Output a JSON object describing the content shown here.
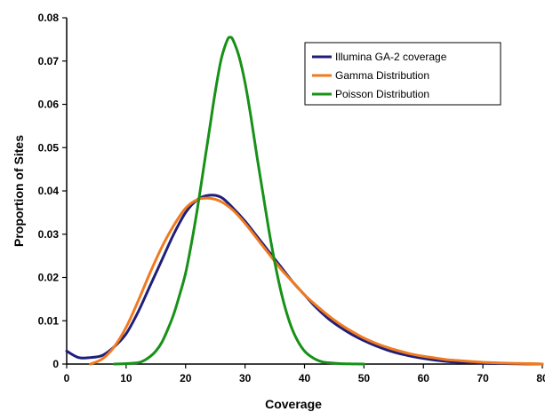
{
  "chart_data": {
    "type": "line",
    "title": "",
    "xlabel": "Coverage",
    "ylabel": "Proportion of Sites",
    "xlim": [
      0,
      80
    ],
    "ylim": [
      0,
      0.08
    ],
    "x_ticks": [
      0,
      10,
      20,
      30,
      40,
      50,
      60,
      70,
      80
    ],
    "x_tick_labels": [
      "0",
      "10",
      "20",
      "30",
      "40",
      "50",
      "60",
      "70",
      "80"
    ],
    "y_ticks": [
      0,
      0.01,
      0.02,
      0.03,
      0.04,
      0.05,
      0.06,
      0.07,
      0.08
    ],
    "y_tick_labels": [
      "0",
      "0.01",
      "0.02",
      "0.03",
      "0.04",
      "0.05",
      "0.06",
      "0.07",
      "0.08"
    ],
    "grid": false,
    "legend_position": "top-right",
    "series": [
      {
        "name": "Illumina GA-2 coverage",
        "color": "#1f1f7a",
        "x": [
          0,
          2,
          4,
          6,
          8,
          10,
          12,
          14,
          16,
          18,
          20,
          22,
          24,
          26,
          28,
          30,
          32,
          34,
          36,
          38,
          40,
          42,
          44,
          46,
          48,
          50,
          52,
          54,
          56,
          58,
          60,
          62,
          64,
          66,
          68,
          70,
          72,
          74,
          76,
          78,
          80
        ],
        "y": [
          0.003,
          0.0015,
          0.0015,
          0.002,
          0.004,
          0.007,
          0.012,
          0.018,
          0.024,
          0.03,
          0.035,
          0.038,
          0.039,
          0.0385,
          0.036,
          0.033,
          0.0295,
          0.026,
          0.0225,
          0.019,
          0.016,
          0.013,
          0.0105,
          0.0085,
          0.0068,
          0.0054,
          0.0042,
          0.0032,
          0.0024,
          0.0018,
          0.0013,
          0.0009,
          0.0006,
          0.0004,
          0.0003,
          0.0002,
          0.00015,
          0.0001,
          5e-05,
          3e-05,
          0.0
        ]
      },
      {
        "name": "Gamma Distribution",
        "color": "#f07a1f",
        "x": [
          4,
          6,
          8,
          10,
          12,
          14,
          16,
          18,
          20,
          22,
          24,
          26,
          28,
          30,
          32,
          34,
          36,
          38,
          40,
          42,
          44,
          46,
          48,
          50,
          52,
          54,
          56,
          58,
          60,
          62,
          64,
          66,
          68,
          70,
          72,
          74,
          76,
          78,
          80
        ],
        "y": [
          0.0,
          0.0012,
          0.004,
          0.0085,
          0.0145,
          0.021,
          0.027,
          0.032,
          0.036,
          0.038,
          0.0383,
          0.0375,
          0.0355,
          0.0325,
          0.029,
          0.0255,
          0.022,
          0.019,
          0.016,
          0.0135,
          0.0112,
          0.0092,
          0.0075,
          0.006,
          0.0048,
          0.0038,
          0.003,
          0.0023,
          0.0018,
          0.0014,
          0.001,
          0.0008,
          0.0006,
          0.0004,
          0.0003,
          0.0002,
          0.00015,
          0.0001,
          0.0
        ]
      },
      {
        "name": "Poisson Distribution",
        "color": "#179117",
        "x": [
          8,
          10,
          12,
          13,
          14,
          15,
          16,
          17,
          18,
          19,
          20,
          21,
          22,
          23,
          24,
          25,
          26,
          27,
          27.5,
          28,
          29,
          30,
          31,
          32,
          33,
          34,
          35,
          36,
          37,
          38,
          39,
          40,
          41,
          42,
          43,
          44,
          46,
          48,
          50
        ],
        "y": [
          0.0,
          0.0001,
          0.0003,
          0.0008,
          0.0017,
          0.003,
          0.005,
          0.008,
          0.0115,
          0.016,
          0.021,
          0.028,
          0.036,
          0.045,
          0.054,
          0.063,
          0.0705,
          0.0748,
          0.0755,
          0.0748,
          0.071,
          0.065,
          0.057,
          0.048,
          0.0395,
          0.031,
          0.0235,
          0.017,
          0.0118,
          0.0078,
          0.005,
          0.003,
          0.0018,
          0.001,
          0.0005,
          0.0003,
          0.0001,
          3e-05,
          0.0
        ]
      }
    ]
  }
}
